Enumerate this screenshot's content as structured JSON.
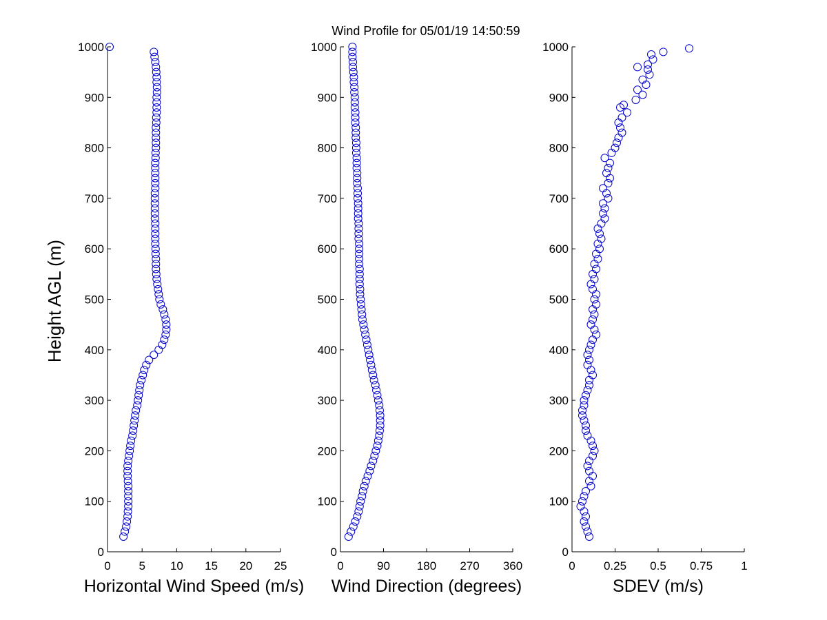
{
  "title": "Wind Profile for  05/01/19 14:50:59",
  "ylabel": "Height AGL (m)",
  "marker_color": "#0000cc",
  "chart_data": [
    {
      "type": "scatter",
      "name": "speed",
      "xlabel": "Horizontal Wind Speed (m/s)",
      "xlim": [
        0,
        25
      ],
      "xticks": [
        0,
        5,
        10,
        15,
        20,
        25
      ],
      "xtick_labels": [
        "0",
        "5",
        "10",
        "15",
        "20",
        "25"
      ],
      "ylim": [
        0,
        1000
      ],
      "yticks": [
        0,
        100,
        200,
        300,
        400,
        500,
        600,
        700,
        800,
        900,
        1000
      ],
      "ytick_labels": [
        "0",
        "100",
        "200",
        "300",
        "400",
        "500",
        "600",
        "700",
        "800",
        "900",
        "1000"
      ],
      "x": [
        2.3,
        2.5,
        2.7,
        2.8,
        2.9,
        2.95,
        3.0,
        3.0,
        3.0,
        3.0,
        3.0,
        2.95,
        2.9,
        2.9,
        2.9,
        3.0,
        3.1,
        3.2,
        3.3,
        3.4,
        3.6,
        3.7,
        3.8,
        3.9,
        4.0,
        4.1,
        4.3,
        4.4,
        4.5,
        4.6,
        4.7,
        4.9,
        5.1,
        5.3,
        5.6,
        6.0,
        6.7,
        7.4,
        7.9,
        8.2,
        8.4,
        8.5,
        8.5,
        8.4,
        8.2,
        8.0,
        7.7,
        7.5,
        7.4,
        7.3,
        7.2,
        7.1,
        7.05,
        7.0,
        7.0,
        7.0,
        6.95,
        6.95,
        6.9,
        6.9,
        6.9,
        6.9,
        6.9,
        6.85,
        6.85,
        6.85,
        6.85,
        6.85,
        6.85,
        6.9,
        6.9,
        6.9,
        6.9,
        6.9,
        6.9,
        6.95,
        6.95,
        7.0,
        7.0,
        7.0,
        7.0,
        7.0,
        7.05,
        7.05,
        7.1,
        7.1,
        7.1,
        7.1,
        7.15,
        7.15,
        7.1,
        7.1,
        7.05,
        7.0,
        6.9,
        6.8,
        6.7,
        0.3
      ],
      "y": [
        30,
        40,
        50,
        60,
        70,
        80,
        90,
        100,
        110,
        120,
        130,
        140,
        150,
        160,
        170,
        180,
        190,
        200,
        210,
        220,
        230,
        240,
        250,
        260,
        270,
        280,
        290,
        300,
        310,
        320,
        330,
        340,
        350,
        360,
        370,
        380,
        390,
        400,
        410,
        420,
        430,
        440,
        450,
        460,
        470,
        480,
        490,
        500,
        510,
        520,
        530,
        540,
        550,
        560,
        570,
        580,
        590,
        600,
        610,
        620,
        630,
        640,
        650,
        660,
        670,
        680,
        690,
        700,
        710,
        720,
        730,
        740,
        750,
        760,
        770,
        780,
        790,
        800,
        810,
        820,
        830,
        840,
        850,
        860,
        870,
        880,
        890,
        900,
        910,
        920,
        930,
        940,
        950,
        960,
        970,
        980,
        990,
        1000
      ]
    },
    {
      "type": "scatter",
      "name": "direction",
      "xlabel": "Wind Direction (degrees)",
      "xlim": [
        0,
        360
      ],
      "xticks": [
        0,
        90,
        180,
        270,
        360
      ],
      "xtick_labels": [
        "0",
        "90",
        "180",
        "270",
        "360"
      ],
      "ylim": [
        0,
        1000
      ],
      "yticks": [
        0,
        100,
        200,
        300,
        400,
        500,
        600,
        700,
        800,
        900,
        1000
      ],
      "ytick_labels": [
        "0",
        "100",
        "200",
        "300",
        "400",
        "500",
        "600",
        "700",
        "800",
        "900",
        "1000"
      ],
      "x": [
        17,
        22,
        27,
        31,
        35,
        38,
        40,
        42,
        45,
        47,
        50,
        53,
        57,
        61,
        64,
        68,
        71,
        74,
        77,
        79,
        81,
        82,
        83,
        83,
        83,
        82,
        81,
        79,
        77,
        75,
        73,
        70,
        68,
        66,
        64,
        62,
        60,
        58,
        56,
        54,
        52,
        50,
        48,
        46,
        45,
        44,
        43,
        42,
        41,
        41,
        40,
        40,
        40,
        40,
        39,
        39,
        39,
        39,
        39,
        38,
        38,
        38,
        38,
        37,
        37,
        37,
        37,
        36,
        36,
        36,
        35,
        35,
        35,
        34,
        34,
        34,
        33,
        33,
        33,
        32,
        32,
        32,
        31,
        31,
        31,
        30,
        30,
        30,
        29,
        29,
        28,
        28,
        27,
        26,
        26,
        25,
        25,
        25
      ],
      "y": [
        30,
        40,
        50,
        60,
        70,
        80,
        90,
        100,
        110,
        120,
        130,
        140,
        150,
        160,
        170,
        180,
        190,
        200,
        210,
        220,
        230,
        240,
        250,
        260,
        270,
        280,
        290,
        300,
        310,
        320,
        330,
        340,
        350,
        360,
        370,
        380,
        390,
        400,
        410,
        420,
        430,
        440,
        450,
        460,
        470,
        480,
        490,
        500,
        510,
        520,
        530,
        540,
        550,
        560,
        570,
        580,
        590,
        600,
        610,
        620,
        630,
        640,
        650,
        660,
        670,
        680,
        690,
        700,
        710,
        720,
        730,
        740,
        750,
        760,
        770,
        780,
        790,
        800,
        810,
        820,
        830,
        840,
        850,
        860,
        870,
        880,
        890,
        900,
        910,
        920,
        930,
        940,
        950,
        960,
        970,
        980,
        990,
        1000
      ]
    },
    {
      "type": "scatter",
      "name": "sdev",
      "xlabel": "SDEV  (m/s)",
      "xlim": [
        0,
        1
      ],
      "xticks": [
        0,
        0.25,
        0.5,
        0.75,
        1
      ],
      "xtick_labels": [
        "0",
        "0.25",
        "0.5",
        "0.75",
        "1"
      ],
      "ylim": [
        0,
        1000
      ],
      "yticks": [
        0,
        100,
        200,
        300,
        400,
        500,
        600,
        700,
        800,
        900,
        1000
      ],
      "ytick_labels": [
        "0",
        "100",
        "200",
        "300",
        "400",
        "500",
        "600",
        "700",
        "800",
        "900",
        "1000"
      ],
      "x": [
        0.1,
        0.09,
        0.08,
        0.07,
        0.08,
        0.07,
        0.05,
        0.06,
        0.07,
        0.08,
        0.11,
        0.1,
        0.12,
        0.1,
        0.09,
        0.1,
        0.12,
        0.13,
        0.12,
        0.11,
        0.09,
        0.08,
        0.08,
        0.07,
        0.06,
        0.06,
        0.07,
        0.07,
        0.08,
        0.09,
        0.1,
        0.1,
        0.12,
        0.11,
        0.09,
        0.1,
        0.09,
        0.1,
        0.11,
        0.12,
        0.14,
        0.13,
        0.11,
        0.12,
        0.13,
        0.12,
        0.14,
        0.13,
        0.14,
        0.12,
        0.11,
        0.13,
        0.12,
        0.14,
        0.13,
        0.15,
        0.14,
        0.16,
        0.15,
        0.17,
        0.16,
        0.15,
        0.17,
        0.19,
        0.18,
        0.19,
        0.18,
        0.21,
        0.2,
        0.18,
        0.21,
        0.22,
        0.2,
        0.21,
        0.22,
        0.19,
        0.23,
        0.25,
        0.26,
        0.27,
        0.29,
        0.28,
        0.27,
        0.29,
        0.32,
        0.28,
        0.3,
        0.37,
        0.41,
        0.38,
        0.43,
        0.41,
        0.45,
        0.44,
        0.38,
        0.44,
        0.47,
        0.46,
        0.53,
        0.68
      ],
      "y": [
        30,
        40,
        50,
        60,
        70,
        80,
        90,
        100,
        110,
        120,
        130,
        140,
        150,
        160,
        170,
        180,
        190,
        200,
        210,
        220,
        230,
        240,
        250,
        260,
        270,
        280,
        290,
        300,
        310,
        320,
        330,
        340,
        350,
        360,
        370,
        380,
        390,
        400,
        410,
        420,
        430,
        440,
        450,
        460,
        470,
        480,
        490,
        500,
        510,
        520,
        530,
        540,
        550,
        560,
        570,
        580,
        590,
        600,
        610,
        620,
        630,
        640,
        650,
        660,
        670,
        680,
        690,
        700,
        710,
        720,
        730,
        740,
        750,
        760,
        770,
        780,
        790,
        800,
        810,
        820,
        830,
        840,
        850,
        860,
        870,
        880,
        885,
        895,
        905,
        915,
        925,
        935,
        945,
        955,
        960,
        965,
        975,
        985,
        990,
        997
      ]
    }
  ]
}
